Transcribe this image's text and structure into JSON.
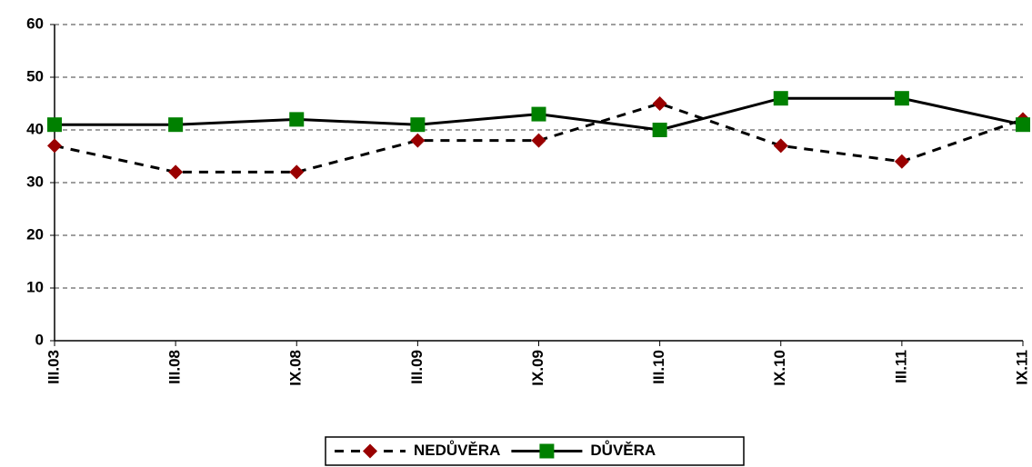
{
  "chart_data": {
    "type": "line",
    "categories": [
      "III.03",
      "III.08",
      "IX.08",
      "III.09",
      "IX.09",
      "III.10",
      "IX.10",
      "III.11",
      "IX.11"
    ],
    "series": [
      {
        "name": "NEDŮVĚRA",
        "color": "#990000",
        "marker": "diamond",
        "line_style": "dashed",
        "values": [
          37,
          32,
          32,
          38,
          38,
          45,
          37,
          34,
          42
        ]
      },
      {
        "name": "DŮVĚRA",
        "color": "#008000",
        "marker": "square",
        "line_style": "solid",
        "values": [
          41,
          41,
          42,
          41,
          43,
          40,
          46,
          46,
          41
        ]
      }
    ],
    "ylim": [
      0,
      60
    ],
    "yticks": [
      0,
      10,
      20,
      30,
      40,
      50,
      60
    ],
    "grid": true,
    "legend": "bottom"
  }
}
